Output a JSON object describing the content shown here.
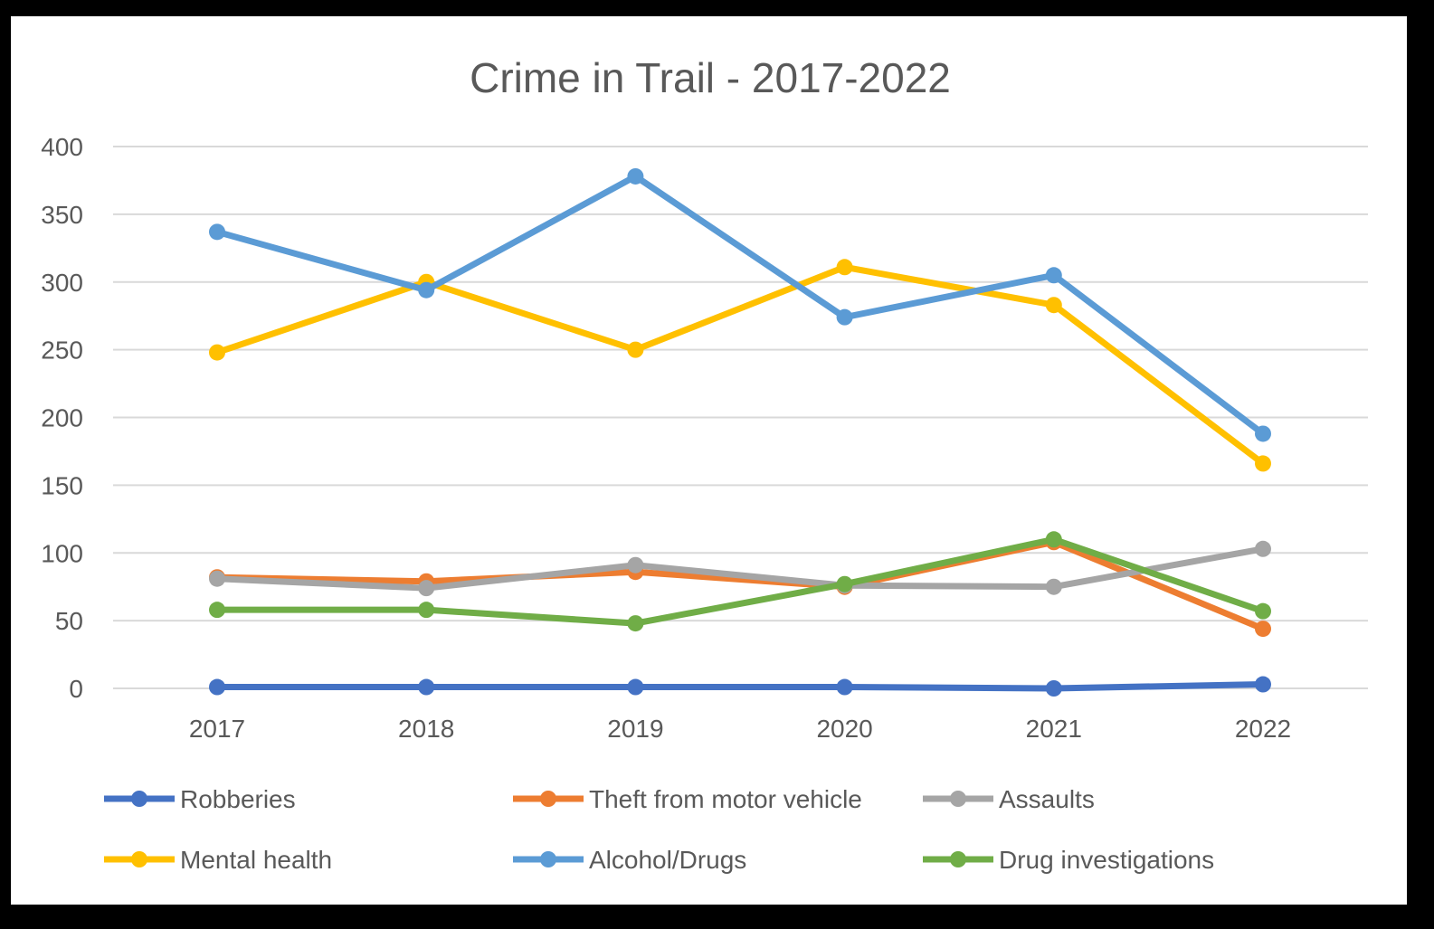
{
  "chart_data": {
    "type": "line",
    "title": "Crime in Trail - 2017-2022",
    "categories": [
      "2017",
      "2018",
      "2019",
      "2020",
      "2021",
      "2022"
    ],
    "ylim": [
      0,
      400
    ],
    "yticks": [
      0,
      50,
      100,
      150,
      200,
      250,
      300,
      350,
      400
    ],
    "grid": true,
    "legend_placement": "bottom",
    "series": [
      {
        "name": "Robberies",
        "color": "#4472C4",
        "values": [
          1,
          1,
          1,
          1,
          0,
          3
        ]
      },
      {
        "name": "Theft from motor vehicle",
        "color": "#ED7D31",
        "values": [
          82,
          79,
          86,
          75,
          108,
          44
        ]
      },
      {
        "name": "Assaults",
        "color": "#A5A5A5",
        "values": [
          81,
          74,
          91,
          76,
          75,
          103
        ]
      },
      {
        "name": "Mental health",
        "color": "#FFC000",
        "values": [
          248,
          300,
          250,
          311,
          283,
          166
        ]
      },
      {
        "name": "Alcohol/Drugs",
        "color": "#5B9BD5",
        "values": [
          337,
          294,
          378,
          274,
          305,
          188
        ]
      },
      {
        "name": "Drug investigations",
        "color": "#70AD47",
        "values": [
          58,
          58,
          48,
          77,
          110,
          57
        ]
      }
    ]
  }
}
